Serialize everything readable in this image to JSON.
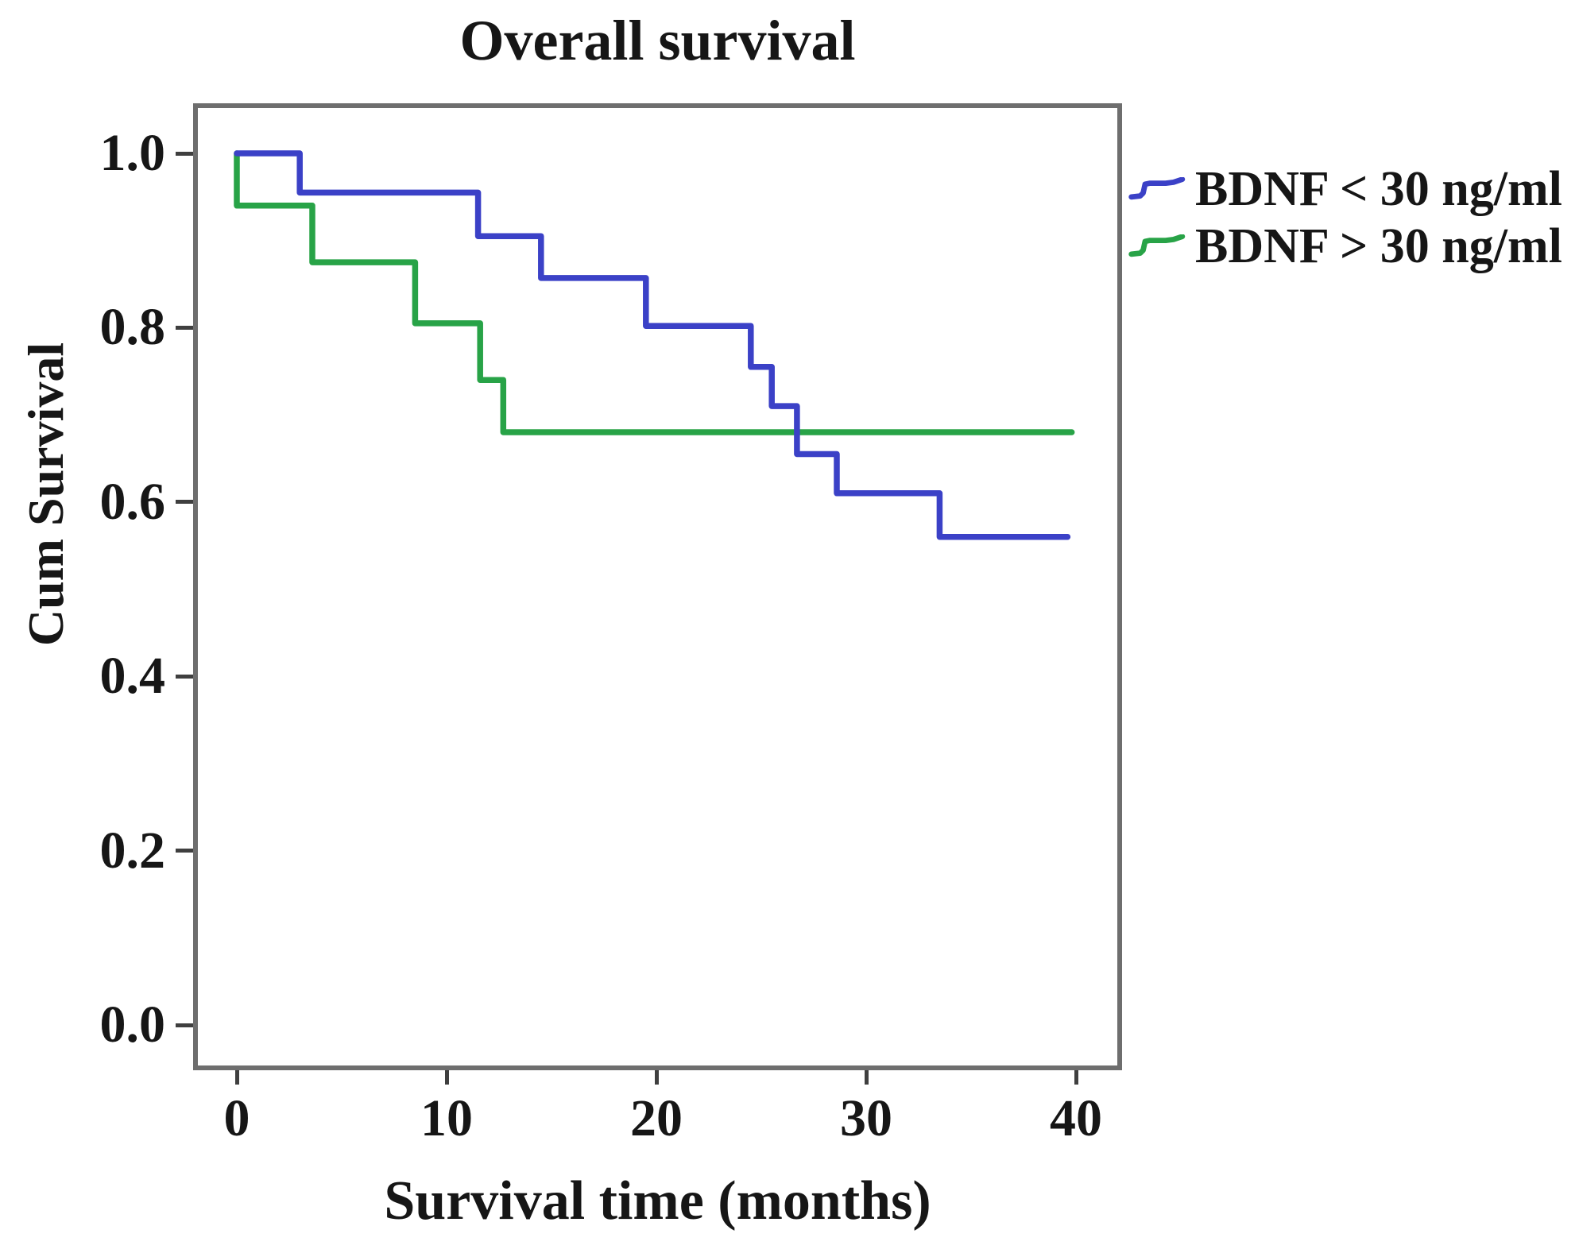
{
  "figure": {
    "title": "Overall survival",
    "x_axis": {
      "label": "Survival time (months)",
      "tick_labels": [
        "0",
        "10",
        "20",
        "30",
        "40"
      ],
      "tick_values": [
        0,
        10,
        20,
        30,
        40
      ]
    },
    "y_axis": {
      "label": "Cum Survival",
      "tick_labels": [
        "1.0",
        "0.8",
        "0.6",
        "0.4",
        "0.2",
        "0.0"
      ],
      "tick_values": [
        1.0,
        0.8,
        0.6,
        0.4,
        0.2,
        0.0
      ]
    },
    "legend": [
      {
        "label": "BDNF < 30 ng/ml",
        "color": "#3b41c7"
      },
      {
        "label": "BDNF > 30 ng/ml",
        "color": "#28a347"
      }
    ]
  },
  "colors": {
    "blue_series": "#3b41c7",
    "green_series": "#28a347",
    "plot_border": "#6e6e6e",
    "tick": "#3f3f3f",
    "text": "#161616"
  },
  "chart_data": {
    "type": "line",
    "subtype": "kaplan-meier-step",
    "title": "Overall survival",
    "xlabel": "Survival time (months)",
    "ylabel": "Cum Survival",
    "xlim": [
      0,
      42
    ],
    "ylim": [
      0.0,
      1.05
    ],
    "x_ticks": [
      0,
      10,
      20,
      30,
      40
    ],
    "y_ticks": [
      1.0,
      0.8,
      0.6,
      0.4,
      0.2,
      0.0
    ],
    "grid": false,
    "legend_position": "outside-right-top",
    "series": [
      {
        "name": "BDNF < 30 ng/ml",
        "color": "#3b41c7",
        "points": [
          [
            0,
            1.0
          ],
          [
            3,
            1.0
          ],
          [
            3,
            0.955
          ],
          [
            11.5,
            0.955
          ],
          [
            11.5,
            0.905
          ],
          [
            14.5,
            0.905
          ],
          [
            14.5,
            0.857
          ],
          [
            19.5,
            0.857
          ],
          [
            19.5,
            0.802
          ],
          [
            24.5,
            0.802
          ],
          [
            24.5,
            0.755
          ],
          [
            25.5,
            0.755
          ],
          [
            25.5,
            0.71
          ],
          [
            26.7,
            0.71
          ],
          [
            26.7,
            0.655
          ],
          [
            28.6,
            0.655
          ],
          [
            28.6,
            0.61
          ],
          [
            33.5,
            0.61
          ],
          [
            33.5,
            0.56
          ],
          [
            39.6,
            0.56
          ]
        ]
      },
      {
        "name": "BDNF > 30 ng/ml",
        "color": "#28a347",
        "points": [
          [
            0,
            1.0
          ],
          [
            0,
            0.94
          ],
          [
            3.6,
            0.94
          ],
          [
            3.6,
            0.875
          ],
          [
            8.5,
            0.875
          ],
          [
            8.5,
            0.805
          ],
          [
            11.6,
            0.805
          ],
          [
            11.6,
            0.74
          ],
          [
            12.7,
            0.74
          ],
          [
            12.7,
            0.68
          ],
          [
            39.8,
            0.68
          ]
        ]
      }
    ]
  }
}
